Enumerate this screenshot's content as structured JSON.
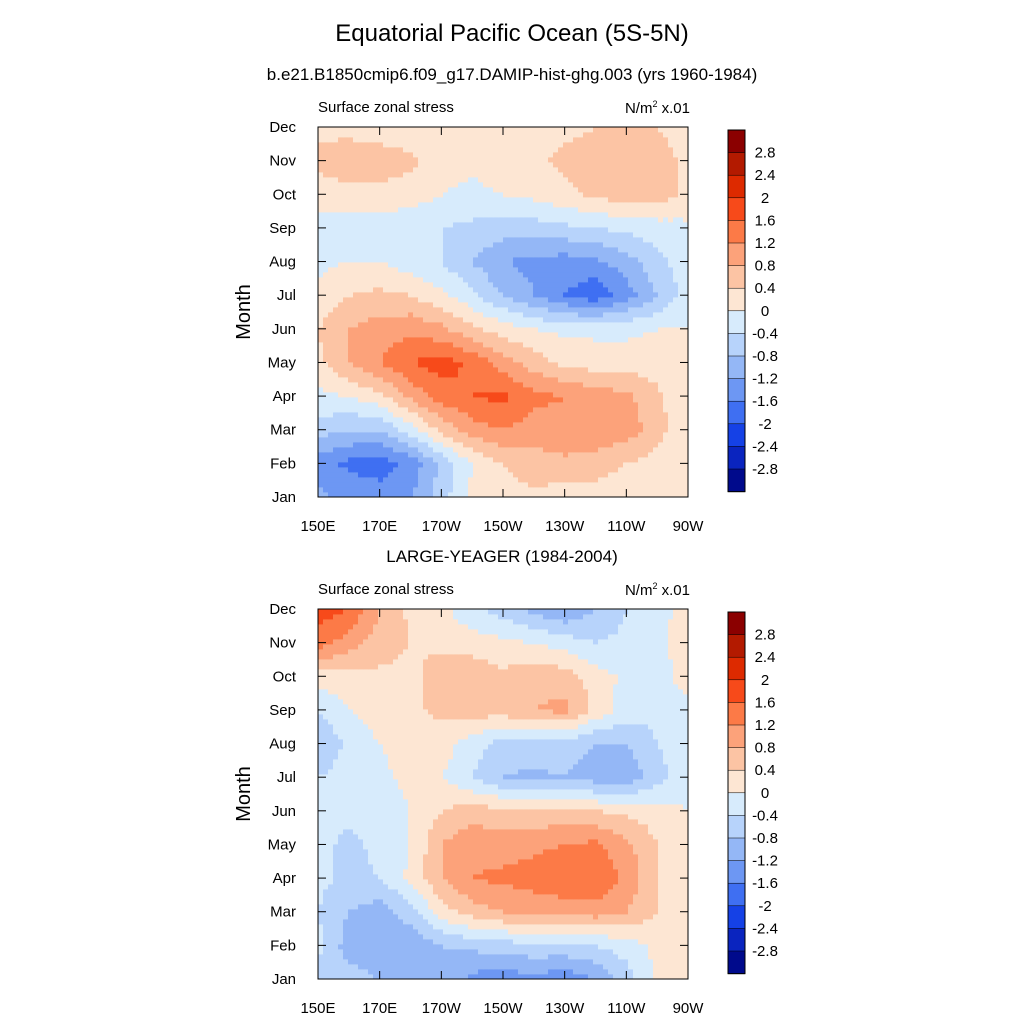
{
  "title": "Equatorial Pacific Ocean (5S-5N)",
  "subtitle": "b.e21.B1850cmip6.f09_g17.DAMIP-hist-ghg.003 (yrs 1960-1984)",
  "panel2_title": "LARGE-YEAGER (1984-2004)",
  "panels": [
    {
      "variable_label": "Surface zonal stress",
      "units_base": "N/m",
      "units_sup": "2",
      "units_scale": "x.01"
    },
    {
      "variable_label": "Surface zonal stress",
      "units_base": "N/m",
      "units_sup": "2",
      "units_scale": "x.01"
    }
  ],
  "y_axis_label": "Month",
  "y_tick_labels": [
    "Jan",
    "Feb",
    "Mar",
    "Apr",
    "May",
    "Jun",
    "Jul",
    "Aug",
    "Sep",
    "Oct",
    "Nov",
    "Dec"
  ],
  "x_tick_labels": [
    "150E",
    "170E",
    "170W",
    "150W",
    "130W",
    "110W",
    "90W"
  ],
  "colorbar": {
    "labels": [
      "2.8",
      "2.4",
      "2",
      "1.6",
      "1.2",
      "0.8",
      "0.4",
      "0",
      "-0.4",
      "-0.8",
      "-1.2",
      "-1.6",
      "-2",
      "-2.4",
      "-2.8"
    ],
    "colors": [
      "#8b0000",
      "#b31a00",
      "#dd2a00",
      "#f74a1a",
      "#fc7a47",
      "#fca27a",
      "#fcc4a4",
      "#fde6d3",
      "#d7ebfc",
      "#b7d3fb",
      "#94b7f6",
      "#6d97f3",
      "#3f6ff2",
      "#1541e6",
      "#0a24bf",
      "#000a8c"
    ]
  },
  "chart_data": [
    {
      "type": "heatmap",
      "title": "Surface zonal stress",
      "units": "N/m2 x.01",
      "x": [
        "150E",
        "160E",
        "170E",
        "180",
        "170W",
        "160W",
        "150W",
        "140W",
        "130W",
        "120W",
        "110W",
        "100W",
        "90W"
      ],
      "y": [
        "Jan",
        "Feb",
        "Mar",
        "Apr",
        "May",
        "Jun",
        "Jul",
        "Aug",
        "Sep",
        "Oct",
        "Nov",
        "Dec"
      ],
      "ylabel": "Month",
      "values": [
        [
          -1.1,
          -1.3,
          -1.4,
          -1.2,
          -0.6,
          0.1,
          0.3,
          0.3,
          0.2,
          0.2,
          0.1,
          0.1,
          0.0
        ],
        [
          -1.4,
          -1.7,
          -1.8,
          -1.5,
          -0.7,
          0.0,
          0.4,
          0.6,
          0.7,
          0.6,
          0.4,
          0.2,
          0.0
        ],
        [
          -0.6,
          -0.8,
          -0.8,
          -0.2,
          0.5,
          1.0,
          1.2,
          1.0,
          1.1,
          1.1,
          1.0,
          0.6,
          0.0
        ],
        [
          -0.1,
          0.0,
          0.3,
          0.9,
          1.4,
          1.6,
          1.7,
          1.3,
          1.2,
          1.0,
          0.9,
          0.5,
          0.0
        ],
        [
          0.3,
          0.8,
          1.2,
          1.6,
          1.8,
          1.5,
          1.0,
          0.6,
          0.3,
          0.2,
          0.2,
          0.2,
          0.0
        ],
        [
          0.4,
          0.8,
          1.0,
          1.1,
          0.9,
          0.5,
          0.2,
          0.0,
          -0.1,
          -0.1,
          -0.1,
          0.0,
          0.0
        ],
        [
          0.1,
          0.4,
          0.5,
          0.4,
          0.1,
          -0.3,
          -0.8,
          -1.2,
          -1.6,
          -1.9,
          -1.4,
          -0.8,
          -0.2
        ],
        [
          -0.1,
          0.0,
          0.0,
          -0.2,
          -0.4,
          -0.8,
          -1.2,
          -1.3,
          -1.4,
          -1.3,
          -1.0,
          -0.5,
          -0.2
        ],
        [
          -0.2,
          -0.2,
          -0.3,
          -0.3,
          -0.4,
          -0.5,
          -0.6,
          -0.6,
          -0.5,
          -0.4,
          -0.3,
          -0.2,
          -0.1
        ],
        [
          0.2,
          0.3,
          0.3,
          0.2,
          0.0,
          -0.1,
          0.0,
          0.1,
          0.3,
          0.5,
          0.6,
          0.6,
          0.3
        ],
        [
          0.5,
          0.6,
          0.6,
          0.5,
          0.2,
          0.1,
          0.2,
          0.3,
          0.5,
          0.6,
          0.6,
          0.6,
          0.3
        ],
        [
          0.3,
          0.3,
          0.2,
          0.1,
          0.0,
          0.0,
          0.1,
          0.2,
          0.3,
          0.4,
          0.4,
          0.4,
          0.2
        ]
      ],
      "colorbar_levels": [
        -2.8,
        -2.4,
        -2,
        -1.6,
        -1.2,
        -0.8,
        -0.4,
        0,
        0.4,
        0.8,
        1.2,
        1.6,
        2,
        2.4,
        2.8
      ]
    },
    {
      "type": "heatmap",
      "title": "Surface zonal stress",
      "units": "N/m2 x.01",
      "x": [
        "150E",
        "160E",
        "170E",
        "180",
        "170W",
        "160W",
        "150W",
        "140W",
        "130W",
        "120W",
        "110W",
        "100W",
        "90W"
      ],
      "y": [
        "Jan",
        "Feb",
        "Mar",
        "Apr",
        "May",
        "Jun",
        "Jul",
        "Aug",
        "Sep",
        "Oct",
        "Nov",
        "Dec"
      ],
      "ylabel": "Month",
      "values": [
        [
          -0.5,
          -0.6,
          -0.8,
          -0.9,
          -1.0,
          -1.3,
          -1.5,
          -1.3,
          -1.5,
          -1.2,
          -0.6,
          0.1,
          0.2
        ],
        [
          -0.3,
          -1.0,
          -1.2,
          -1.1,
          -0.8,
          -0.7,
          -0.6,
          -0.5,
          -0.5,
          -0.4,
          -0.2,
          0.1,
          0.1
        ],
        [
          -0.4,
          -0.8,
          -1.0,
          -0.6,
          0.2,
          0.6,
          0.8,
          0.9,
          1.0,
          1.0,
          0.8,
          0.4,
          0.1
        ],
        [
          -0.3,
          -0.5,
          -0.4,
          0.1,
          0.8,
          1.2,
          1.3,
          1.4,
          1.5,
          1.6,
          1.1,
          0.4,
          0.1
        ],
        [
          -0.3,
          -0.5,
          -0.3,
          0.0,
          0.8,
          1.1,
          1.0,
          1.1,
          1.2,
          1.3,
          0.9,
          0.4,
          0.1
        ],
        [
          -0.2,
          -0.3,
          -0.2,
          0.0,
          0.4,
          0.6,
          0.5,
          0.5,
          0.5,
          0.4,
          0.3,
          0.2,
          0.0
        ],
        [
          -0.4,
          -0.2,
          -0.1,
          0.1,
          0.0,
          -0.4,
          -0.8,
          -0.9,
          -0.8,
          -1.0,
          -1.1,
          -0.6,
          -0.1
        ],
        [
          -0.8,
          -0.3,
          0.0,
          0.2,
          0.2,
          -0.2,
          -0.6,
          -0.5,
          -0.6,
          -0.8,
          -0.8,
          -0.4,
          -0.1
        ],
        [
          -0.4,
          0.0,
          0.2,
          0.3,
          0.5,
          0.6,
          0.6,
          0.8,
          0.9,
          0.3,
          -0.2,
          -0.3,
          -0.1
        ],
        [
          0.2,
          0.3,
          0.3,
          0.3,
          0.6,
          0.7,
          0.5,
          0.7,
          0.6,
          0.2,
          -0.1,
          -0.2,
          0.2
        ],
        [
          1.4,
          1.0,
          0.6,
          0.4,
          0.3,
          0.2,
          0.1,
          0.0,
          -0.2,
          -0.4,
          -0.3,
          -0.1,
          0.2
        ],
        [
          1.8,
          1.6,
          0.8,
          0.3,
          0.1,
          -0.3,
          -0.6,
          -0.9,
          -1.2,
          -0.8,
          -0.4,
          -0.1,
          0.1
        ]
      ],
      "colorbar_levels": [
        -2.8,
        -2.4,
        -2,
        -1.6,
        -1.2,
        -0.8,
        -0.4,
        0,
        0.4,
        0.8,
        1.2,
        1.6,
        2,
        2.4,
        2.8
      ]
    }
  ]
}
